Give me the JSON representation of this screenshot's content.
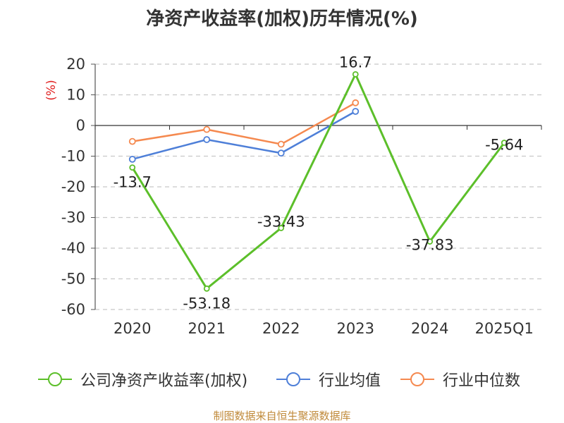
{
  "chart_data": {
    "type": "line",
    "title": "净资产收益率(加权)历年情况(%)",
    "ylabel": "(%)",
    "xlabel": "",
    "categories": [
      "2020",
      "2021",
      "2022",
      "2023",
      "2024",
      "2025Q1"
    ],
    "ylim": [
      -60,
      20
    ],
    "yticks": [
      20,
      10,
      0,
      -10,
      -20,
      -30,
      -40,
      -50,
      -60
    ],
    "grid": true,
    "legend_position": "bottom",
    "series": [
      {
        "name": "公司净资产收益率(加权)",
        "color": "#5cbf2a",
        "values": [
          -13.7,
          -53.18,
          -33.43,
          16.7,
          -37.83,
          -5.64
        ],
        "labels": [
          "-13.7",
          "-53.18",
          "-33.43",
          "16.7",
          "-37.83",
          "-5.64"
        ]
      },
      {
        "name": "行业均值",
        "color": "#4e7fd8",
        "values": [
          -11,
          -4.6,
          -9,
          4.6,
          null,
          null
        ]
      },
      {
        "name": "行业中位数",
        "color": "#f5894f",
        "values": [
          -5.2,
          -1.3,
          -6.1,
          7.4,
          null,
          null
        ]
      }
    ]
  },
  "footer": {
    "source": "制图数据来自恒生聚源数据库"
  }
}
